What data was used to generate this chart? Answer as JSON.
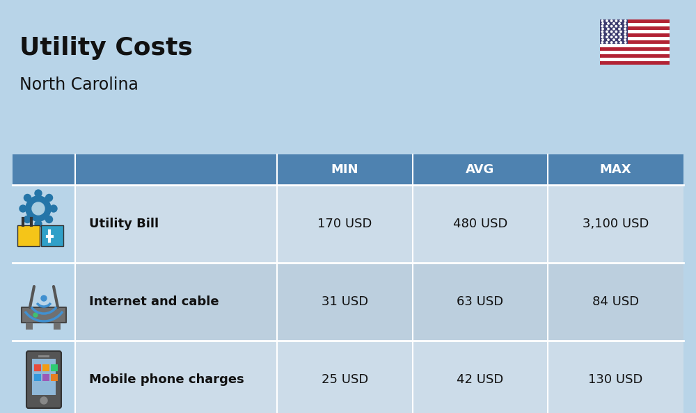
{
  "title": "Utility Costs",
  "subtitle": "North Carolina",
  "background_color": "#b8d4e8",
  "header_bg_color": "#4e82b0",
  "header_text_color": "#ffffff",
  "row_bg_even": "#ccdce9",
  "row_bg_odd": "#bccfde",
  "icon_col_bg": "#b8d4e8",
  "text_color": "#111111",
  "sep_color": "#ffffff",
  "columns": [
    "MIN",
    "AVG",
    "MAX"
  ],
  "rows": [
    {
      "label": "Utility Bill",
      "min": "170 USD",
      "avg": "480 USD",
      "max": "3,100 USD",
      "icon": "utility"
    },
    {
      "label": "Internet and cable",
      "min": "31 USD",
      "avg": "63 USD",
      "max": "84 USD",
      "icon": "internet"
    },
    {
      "label": "Mobile phone charges",
      "min": "25 USD",
      "avg": "42 USD",
      "max": "130 USD",
      "icon": "mobile"
    }
  ],
  "title_fontsize": 26,
  "subtitle_fontsize": 17,
  "header_fontsize": 13,
  "cell_fontsize": 13,
  "label_fontsize": 13,
  "fig_width": 10.0,
  "fig_height": 5.94,
  "dpi": 100
}
